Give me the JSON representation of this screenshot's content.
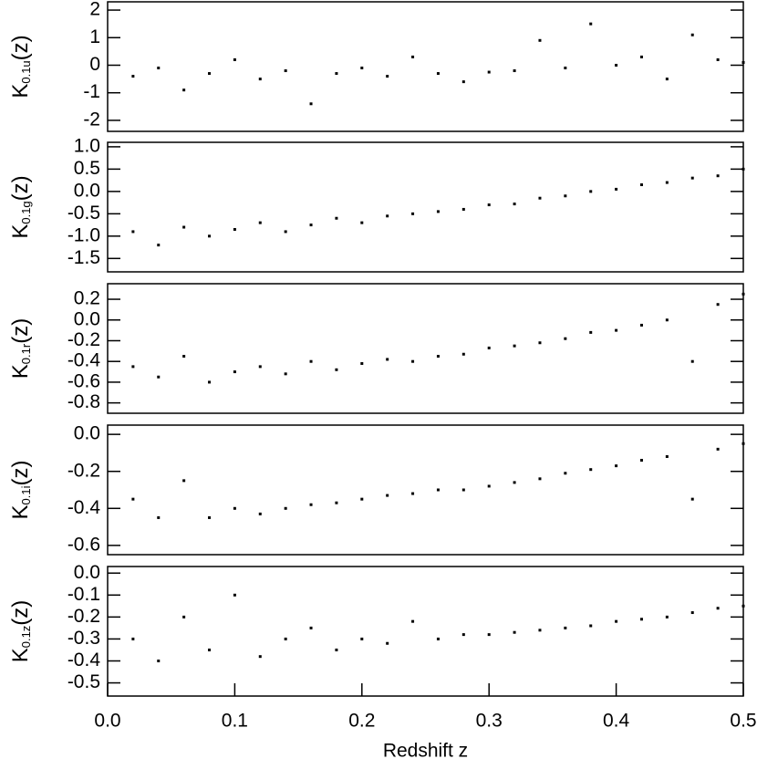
{
  "chart_data": [
    {
      "type": "scatter",
      "color": "#000000",
      "ylabel": {
        "main": "K",
        "sub": "0.1u",
        "tail": "(z)"
      },
      "x": [
        0.02,
        0.04,
        0.06,
        0.08,
        0.1,
        0.12,
        0.14,
        0.16,
        0.18,
        0.2,
        0.22,
        0.24,
        0.26,
        0.28,
        0.3,
        0.32,
        0.34,
        0.36,
        0.38,
        0.4,
        0.42,
        0.44,
        0.46,
        0.48,
        0.5
      ],
      "values": [
        -0.4,
        -0.1,
        -0.9,
        -0.3,
        0.2,
        -0.5,
        -0.2,
        -1.4,
        -0.3,
        -0.1,
        -0.4,
        0.3,
        -0.3,
        -0.6,
        -0.25,
        -0.2,
        0.9,
        -0.1,
        1.5,
        0.0,
        0.3,
        -0.5,
        1.1,
        0.2,
        0.1
      ],
      "xlim": [
        0,
        0.5
      ],
      "ylim": [
        -2.4,
        2.3
      ],
      "yticks": [
        -2,
        -1,
        0,
        1,
        2
      ]
    },
    {
      "type": "scatter",
      "color": "#000000",
      "ylabel": {
        "main": "K",
        "sub": "0.1g",
        "tail": "(z)"
      },
      "x": [
        0.02,
        0.04,
        0.06,
        0.08,
        0.1,
        0.12,
        0.14,
        0.16,
        0.18,
        0.2,
        0.22,
        0.24,
        0.26,
        0.28,
        0.3,
        0.32,
        0.34,
        0.36,
        0.38,
        0.4,
        0.42,
        0.44,
        0.46,
        0.48,
        0.5
      ],
      "values": [
        -0.9,
        -1.2,
        -0.8,
        -1.0,
        -0.85,
        -0.7,
        -0.9,
        -0.75,
        -0.6,
        -0.7,
        -0.55,
        -0.5,
        -0.45,
        -0.4,
        -0.3,
        -0.28,
        -0.15,
        -0.1,
        0.0,
        0.05,
        0.15,
        0.2,
        0.3,
        0.35,
        0.5
      ],
      "xlim": [
        0,
        0.5
      ],
      "ylim": [
        -1.8,
        1.1
      ],
      "yticks": [
        -1.5,
        {
          "value": -1.0,
          "label": "-1.0"
        },
        -0.5,
        {
          "value": 0,
          "label": "0.0"
        },
        0.5,
        {
          "value": 1.0,
          "label": "1.0"
        }
      ]
    },
    {
      "type": "scatter",
      "color": "#000000",
      "ylabel": {
        "main": "K",
        "sub": "0.1r",
        "tail": "(z)"
      },
      "x": [
        0.02,
        0.04,
        0.06,
        0.08,
        0.1,
        0.12,
        0.14,
        0.16,
        0.18,
        0.2,
        0.22,
        0.24,
        0.26,
        0.28,
        0.3,
        0.32,
        0.34,
        0.36,
        0.38,
        0.4,
        0.42,
        0.44,
        0.46,
        0.48,
        0.5
      ],
      "values": [
        -0.45,
        -0.55,
        -0.35,
        -0.6,
        -0.5,
        -0.45,
        -0.52,
        -0.4,
        -0.48,
        -0.42,
        -0.38,
        -0.4,
        -0.35,
        -0.33,
        -0.27,
        -0.25,
        -0.22,
        -0.18,
        -0.12,
        -0.1,
        -0.05,
        0.0,
        -0.4,
        0.15,
        0.25
      ],
      "xlim": [
        0,
        0.5
      ],
      "ylim": [
        -0.9,
        0.35
      ],
      "yticks": [
        -0.8,
        -0.6,
        -0.4,
        -0.2,
        {
          "value": 0,
          "label": "0.0"
        },
        0.2
      ]
    },
    {
      "type": "scatter",
      "color": "#000000",
      "ylabel": {
        "main": "K",
        "sub": "0.1i",
        "tail": "(z)"
      },
      "x": [
        0.02,
        0.04,
        0.06,
        0.08,
        0.1,
        0.12,
        0.14,
        0.16,
        0.18,
        0.2,
        0.22,
        0.24,
        0.26,
        0.28,
        0.3,
        0.32,
        0.34,
        0.36,
        0.38,
        0.4,
        0.42,
        0.44,
        0.46,
        0.48,
        0.5
      ],
      "values": [
        -0.35,
        -0.45,
        -0.25,
        -0.45,
        -0.4,
        -0.43,
        -0.4,
        -0.38,
        -0.37,
        -0.35,
        -0.33,
        -0.32,
        -0.3,
        -0.3,
        -0.28,
        -0.26,
        -0.24,
        -0.21,
        -0.19,
        -0.17,
        -0.14,
        -0.12,
        -0.35,
        -0.08,
        -0.05
      ],
      "xlim": [
        0,
        0.5
      ],
      "ylim": [
        -0.65,
        0.05
      ],
      "yticks": [
        -0.6,
        -0.4,
        -0.2,
        {
          "value": 0,
          "label": "0.0"
        }
      ]
    },
    {
      "type": "scatter",
      "color": "#000000",
      "ylabel": {
        "main": "K",
        "sub": "0.1z",
        "tail": "(z)"
      },
      "x": [
        0.02,
        0.04,
        0.06,
        0.08,
        0.1,
        0.12,
        0.14,
        0.16,
        0.18,
        0.2,
        0.22,
        0.24,
        0.26,
        0.28,
        0.3,
        0.32,
        0.34,
        0.36,
        0.38,
        0.4,
        0.42,
        0.44,
        0.46,
        0.48,
        0.5
      ],
      "values": [
        -0.3,
        -0.4,
        -0.2,
        -0.35,
        -0.1,
        -0.38,
        -0.3,
        -0.25,
        -0.35,
        -0.3,
        -0.32,
        -0.22,
        -0.3,
        -0.28,
        -0.28,
        -0.27,
        -0.26,
        -0.25,
        -0.24,
        -0.22,
        -0.21,
        -0.2,
        -0.18,
        -0.16,
        -0.15
      ],
      "xlim": [
        0,
        0.5
      ],
      "ylim": [
        -0.56,
        0.03
      ],
      "yticks": [
        -0.5,
        -0.4,
        -0.3,
        -0.2,
        -0.1,
        {
          "value": 0,
          "label": "0.0"
        }
      ],
      "xticks": [
        {
          "value": 0,
          "label": "0.0"
        },
        0.1,
        0.2,
        0.3,
        0.4,
        0.5
      ],
      "xlabel": "Redshift z"
    }
  ]
}
